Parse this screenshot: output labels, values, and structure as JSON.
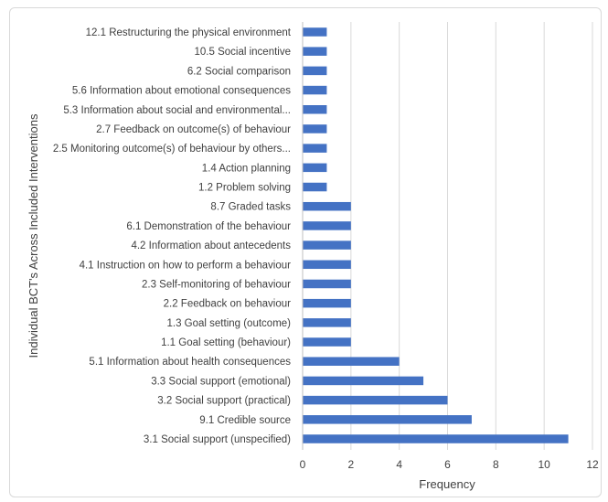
{
  "chart_data": {
    "type": "bar",
    "orientation": "horizontal",
    "title": "",
    "xlabel": "Frequency",
    "ylabel": "Individual BCT's Across Included Interventions",
    "xlim": [
      0,
      12
    ],
    "xticks": [
      0,
      2,
      4,
      6,
      8,
      10,
      12
    ],
    "grid": "vertical gridlines",
    "legend": "none",
    "bar_color": "#4472C4",
    "categories": [
      "12.1 Restructuring the physical environment",
      "10.5 Social incentive",
      "6.2 Social comparison",
      "5.6 Information about emotional consequences",
      "5.3 Information about social and environmental...",
      "2.7 Feedback on outcome(s) of behaviour",
      "2.5 Monitoring outcome(s) of behaviour by others...",
      "1.4 Action planning",
      "1.2 Problem solving",
      "8.7 Graded tasks",
      "6.1 Demonstration of the behaviour",
      "4.2 Information about antecedents",
      "4.1 Instruction on how to perform a behaviour",
      "2.3 Self-monitoring of behaviour",
      "2.2 Feedback on behaviour",
      "1.3 Goal setting (outcome)",
      "1.1 Goal setting (behaviour)",
      "5.1 Information about health consequences",
      "3.3 Social support (emotional)",
      "3.2 Social support (practical)",
      "9.1 Credible source",
      "3.1 Social support (unspecified)"
    ],
    "values": [
      1,
      1,
      1,
      1,
      1,
      1,
      1,
      1,
      1,
      2,
      2,
      2,
      2,
      2,
      2,
      2,
      2,
      4,
      5,
      6,
      7,
      11
    ]
  }
}
